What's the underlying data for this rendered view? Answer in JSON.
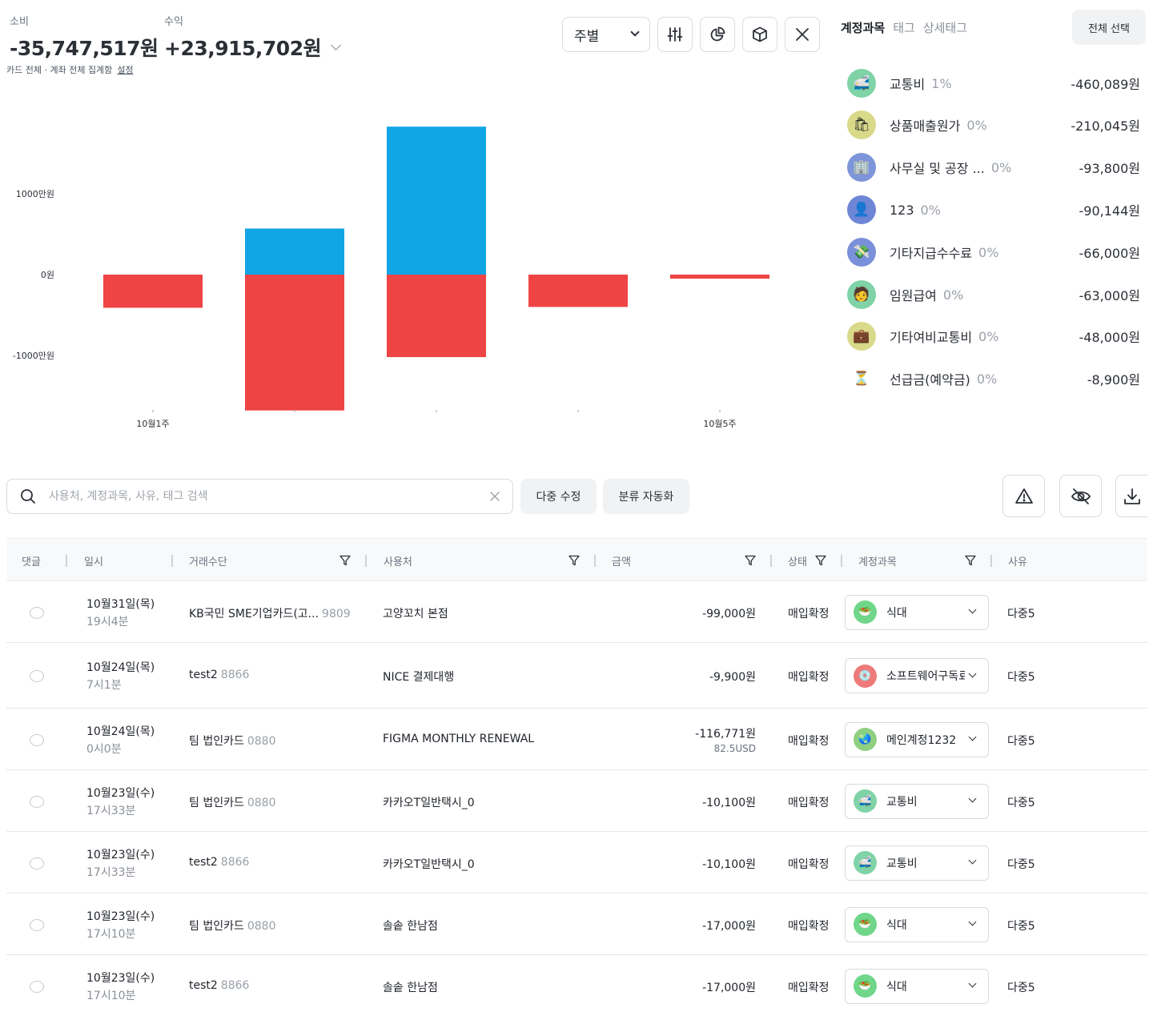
{
  "summary": {
    "spend_label": "소비",
    "spend_value": "-35,747,517원",
    "income_label": "수익",
    "income_value": "+23,915,702원",
    "subtitle": "카드 전체 · 계좌 전체 집계함",
    "settings_link": "설정"
  },
  "toolbar": {
    "period": "주별",
    "icons": [
      "sliders-icon",
      "pie-chart-icon",
      "cube-icon",
      "close-icon"
    ]
  },
  "panel": {
    "tabs": [
      {
        "label": "계정과목",
        "active": true
      },
      {
        "label": "태그",
        "active": false
      },
      {
        "label": "상세태그",
        "active": false
      }
    ],
    "select_all": "전체 선택",
    "categories": [
      {
        "name": "교통비",
        "pct": "1%",
        "amount": "-460,089원",
        "icon": "train-icon",
        "bg": "#7fd3a7",
        "glyph": "🚅"
      },
      {
        "name": "상품매출원가",
        "pct": "0%",
        "amount": "-210,045원",
        "icon": "shopping-bag-icon",
        "bg": "#d9d98a",
        "glyph": "🛍"
      },
      {
        "name": "사무실 및 공장 ...",
        "pct": "0%",
        "amount": "-93,800원",
        "icon": "office-building-icon",
        "bg": "#7d95d9",
        "glyph": "🏢"
      },
      {
        "name": "123",
        "pct": "0%",
        "amount": "-90,144원",
        "icon": "head-silhouette-icon",
        "bg": "#6f86d6",
        "glyph": "👤"
      },
      {
        "name": "기타지급수수료",
        "pct": "0%",
        "amount": "-66,000원",
        "icon": "money-icon",
        "bg": "#7b90da",
        "glyph": "💸"
      },
      {
        "name": "임원급여",
        "pct": "0%",
        "amount": "-63,000원",
        "icon": "person-icon",
        "bg": "#7fd3a7",
        "glyph": "🧑"
      },
      {
        "name": "기타여비교통비",
        "pct": "0%",
        "amount": "-48,000원",
        "icon": "briefcase-icon",
        "bg": "#d9d98a",
        "glyph": "💼"
      },
      {
        "name": "선급금(예약금)",
        "pct": "0%",
        "amount": "-8,900원",
        "icon": "hourglass-icon",
        "bg": "#ffffff",
        "glyph": "⏳"
      }
    ]
  },
  "chart_data": {
    "type": "bar",
    "stacked": true,
    "categories": [
      "10월1주",
      "",
      "",
      "",
      "10월5주"
    ],
    "series": [
      {
        "name": "",
        "color": "#12a5e6",
        "values": [
          0,
          5700000,
          18300000,
          0,
          0
        ]
      },
      {
        "name": "",
        "color": "#ef4444",
        "values": [
          -4100000,
          -16800000,
          -10200000,
          -4000000,
          -500000
        ]
      }
    ],
    "y_ticks": [
      {
        "value": 10000000,
        "label": "1000만원"
      },
      {
        "value": 0,
        "label": "0원"
      },
      {
        "value": -10000000,
        "label": "-1000만원"
      }
    ],
    "ylim": [
      -18000000,
      22000000
    ],
    "grid": false
  },
  "search": {
    "placeholder": "사용처, 계정과목, 사유, 태그 검색",
    "value": ""
  },
  "actions": {
    "bulk_edit": "다중 수정",
    "auto_classify": "분류 자동화",
    "icons": [
      "warning-icon",
      "eye-off-icon",
      "download-icon"
    ]
  },
  "table": {
    "headers": {
      "comment": "댓글",
      "date": "일시",
      "payment": "거래수단",
      "merchant": "사용처",
      "amount": "금액",
      "status": "상태",
      "account": "계정과목",
      "reason": "사유"
    },
    "rows": [
      {
        "date": "10월31일(목)",
        "time": "19시4분",
        "payment": "KB국민 SME기업카드(고...",
        "payment_num": "9809",
        "merchant": "고양꼬치 본점",
        "amount": "-99,000원",
        "amount_sub": "",
        "status": "매입확정",
        "account": "식대",
        "account_icon": "food-bowl-icon",
        "account_bg": "#6fd68a",
        "account_glyph": "🥗",
        "reason": "다중5"
      },
      {
        "date": "10월24일(목)",
        "time": "7시1분",
        "payment": "test2",
        "payment_num": "8866",
        "merchant": "NICE 결제대행",
        "amount": "-9,900원",
        "amount_sub": "",
        "status": "매입확정",
        "account": "소프트웨어구독료",
        "account_icon": "disc-icon",
        "account_bg": "#ef7a7a",
        "account_glyph": "💿",
        "reason": "다중5"
      },
      {
        "date": "10월24일(목)",
        "time": "0시0분",
        "payment": "팀 법인카드",
        "payment_num": "0880",
        "merchant": "FIGMA MONTHLY RENEWAL",
        "amount": "-116,771원",
        "amount_sub": "82.5USD",
        "status": "매입확정",
        "account": "메인계정1232",
        "account_icon": "globe-icon",
        "account_bg": "#8ed07f",
        "account_glyph": "🌏",
        "reason": "다중5"
      },
      {
        "date": "10월23일(수)",
        "time": "17시33분",
        "payment": "팀 법인카드",
        "payment_num": "0880",
        "merchant": "카카오T일반택시_0",
        "amount": "-10,100원",
        "amount_sub": "",
        "status": "매입확정",
        "account": "교통비",
        "account_icon": "train-icon",
        "account_bg": "#7fd3a7",
        "account_glyph": "🚅",
        "reason": "다중5"
      },
      {
        "date": "10월23일(수)",
        "time": "17시33분",
        "payment": "test2",
        "payment_num": "8866",
        "merchant": "카카오T일반택시_0",
        "amount": "-10,100원",
        "amount_sub": "",
        "status": "매입확정",
        "account": "교통비",
        "account_icon": "train-icon",
        "account_bg": "#7fd3a7",
        "account_glyph": "🚅",
        "reason": "다중5"
      },
      {
        "date": "10월23일(수)",
        "time": "17시10분",
        "payment": "팀 법인카드",
        "payment_num": "0880",
        "merchant": "솔솥 한남점",
        "amount": "-17,000원",
        "amount_sub": "",
        "status": "매입확정",
        "account": "식대",
        "account_icon": "food-bowl-icon",
        "account_bg": "#6fd68a",
        "account_glyph": "🥗",
        "reason": "다중5"
      },
      {
        "date": "10월23일(수)",
        "time": "17시10분",
        "payment": "test2",
        "payment_num": "8866",
        "merchant": "솔솥 한남점",
        "amount": "-17,000원",
        "amount_sub": "",
        "status": "매입확정",
        "account": "식대",
        "account_icon": "food-bowl-icon",
        "account_bg": "#6fd68a",
        "account_glyph": "🥗",
        "reason": "다중5"
      }
    ]
  }
}
